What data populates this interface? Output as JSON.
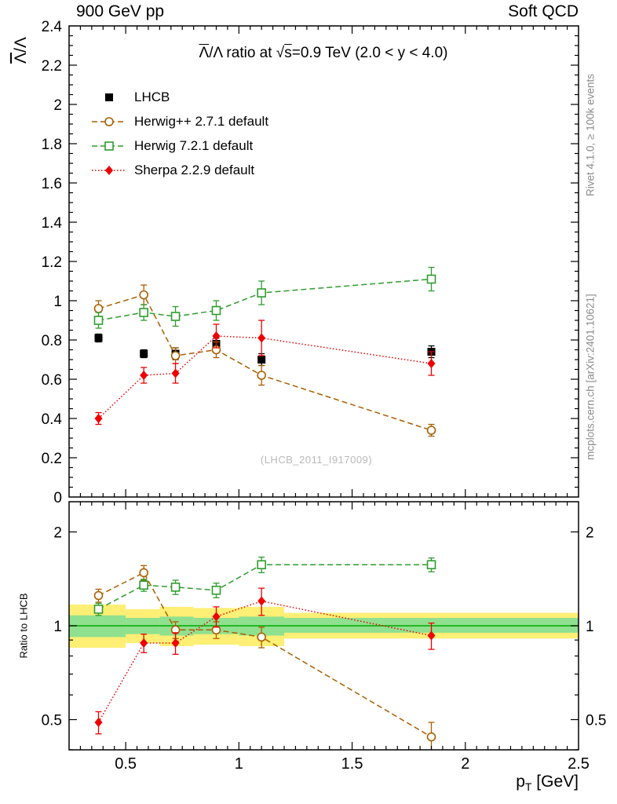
{
  "header": {
    "left": "900 GeV pp",
    "right": "Soft QCD"
  },
  "title": {
    "p1": "Λ",
    "p2": "/Λ ratio at √",
    "p3": "s",
    "p4": "=0.9 TeV (2.0 < y < 4.0)"
  },
  "watermark": "(LHCB_2011_I917009)",
  "side_notes": {
    "top": "Rivet 4.1.0, ≥ 100k events",
    "bottom": "mcplots.cern.ch [arXiv:2401.10621]"
  },
  "axes": {
    "y_main": {
      "p1": "Λ",
      "p2": "/Λ"
    },
    "y_ratio": "Ratio to LHCB",
    "x": {
      "p1": "p",
      "sub": "T",
      "p2": " [GeV]"
    }
  },
  "chart_data": {
    "type": "line",
    "x_range": [
      0.25,
      2.5
    ],
    "x": [
      0.38,
      0.58,
      0.72,
      0.9,
      1.1,
      1.85
    ],
    "x_ticks": {
      "major": [
        0.5,
        1,
        1.5,
        2,
        2.5
      ],
      "labels": [
        "0.5",
        "1",
        "1.5",
        "2",
        "2.5"
      ],
      "minor_step": 0.05
    },
    "main_panel": {
      "y_range": [
        0,
        2.4
      ],
      "y_ticks": {
        "major": [
          0,
          0.2,
          0.4,
          0.6,
          0.8,
          1,
          1.2,
          1.4,
          1.6,
          1.8,
          2,
          2.2,
          2.4
        ],
        "labels": [
          "0",
          "0.2",
          "0.4",
          "0.6",
          "0.8",
          "1",
          "1.2",
          "1.4",
          "1.6",
          "1.8",
          "2",
          "2.2",
          "2.4"
        ],
        "minor_step": 0.05
      },
      "series": [
        {
          "id": "lhcb",
          "name": "LHCB",
          "marker": "filled-square",
          "color": "#000000",
          "line": "none",
          "values": [
            0.81,
            0.73,
            0.73,
            0.78,
            0.7,
            0.74
          ],
          "errors": [
            0.02,
            0.02,
            0.03,
            0.03,
            0.03,
            0.03
          ]
        },
        {
          "id": "herwigpp",
          "name": "Herwig++ 2.7.1 default",
          "marker": "open-circle",
          "color": "#aa5f00",
          "line": "dashed",
          "values": [
            0.96,
            1.03,
            0.72,
            0.75,
            0.62,
            0.34
          ],
          "errors": [
            0.04,
            0.05,
            0.04,
            0.04,
            0.05,
            0.03
          ]
        },
        {
          "id": "herwig7",
          "name": "Herwig 7.2.1 default",
          "marker": "open-square",
          "color": "#2e9d2e",
          "line": "dashed",
          "values": [
            0.9,
            0.94,
            0.92,
            0.95,
            1.04,
            1.11
          ],
          "errors": [
            0.04,
            0.04,
            0.05,
            0.05,
            0.06,
            0.06
          ]
        },
        {
          "id": "sherpa",
          "name": "Sherpa 2.2.9 default",
          "marker": "filled-diamond",
          "color": "#ee0000",
          "line": "dotted",
          "values": [
            0.4,
            0.62,
            0.63,
            0.82,
            0.81,
            0.68
          ],
          "errors": [
            0.03,
            0.04,
            0.05,
            0.06,
            0.09,
            0.06
          ]
        }
      ]
    },
    "ratio_panel": {
      "y_scale": "log",
      "y_range": [
        0.4,
        2.5
      ],
      "y_ticks": {
        "major": [
          0.5,
          1,
          2
        ],
        "labels": [
          "0.5",
          "1",
          "2"
        ],
        "minor": [
          0.4,
          0.6,
          0.7,
          0.8,
          0.9
        ]
      },
      "bands": {
        "yellow_color": "#ffef75",
        "green_color": "#8fe08f",
        "ref_line_color": "#00aa00",
        "bins": [
          [
            0.25,
            0.5
          ],
          [
            0.5,
            0.65
          ],
          [
            0.65,
            0.8
          ],
          [
            0.8,
            1.0
          ],
          [
            1.0,
            1.2
          ],
          [
            1.2,
            2.5
          ]
        ],
        "yellow": [
          [
            0.85,
            1.17
          ],
          [
            0.88,
            1.13
          ],
          [
            0.86,
            1.15
          ],
          [
            0.87,
            1.14
          ],
          [
            0.86,
            1.15
          ],
          [
            0.91,
            1.1
          ]
        ],
        "green": [
          [
            0.92,
            1.08
          ],
          [
            0.94,
            1.06
          ],
          [
            0.93,
            1.07
          ],
          [
            0.94,
            1.06
          ],
          [
            0.93,
            1.07
          ],
          [
            0.95,
            1.06
          ]
        ]
      },
      "series": [
        {
          "id": "herwigpp",
          "name": "Herwig++ 2.7.1 default",
          "marker": "open-circle",
          "color": "#aa5f00",
          "line": "dashed",
          "values": [
            1.25,
            1.48,
            0.97,
            0.97,
            0.92,
            0.44
          ],
          "errors": [
            0.06,
            0.08,
            0.06,
            0.06,
            0.07,
            0.05
          ]
        },
        {
          "id": "herwig7",
          "name": "Herwig 7.2.1 default",
          "marker": "open-square",
          "color": "#2e9d2e",
          "line": "dashed",
          "values": [
            1.13,
            1.35,
            1.33,
            1.3,
            1.57,
            1.57
          ],
          "errors": [
            0.05,
            0.06,
            0.07,
            0.07,
            0.09,
            0.08
          ]
        },
        {
          "id": "sherpa",
          "name": "Sherpa 2.2.9 default",
          "marker": "filled-diamond",
          "color": "#ee0000",
          "line": "dotted",
          "values": [
            0.49,
            0.88,
            0.88,
            1.07,
            1.2,
            0.93
          ],
          "errors": [
            0.04,
            0.06,
            0.07,
            0.08,
            0.12,
            0.09
          ]
        }
      ]
    }
  }
}
